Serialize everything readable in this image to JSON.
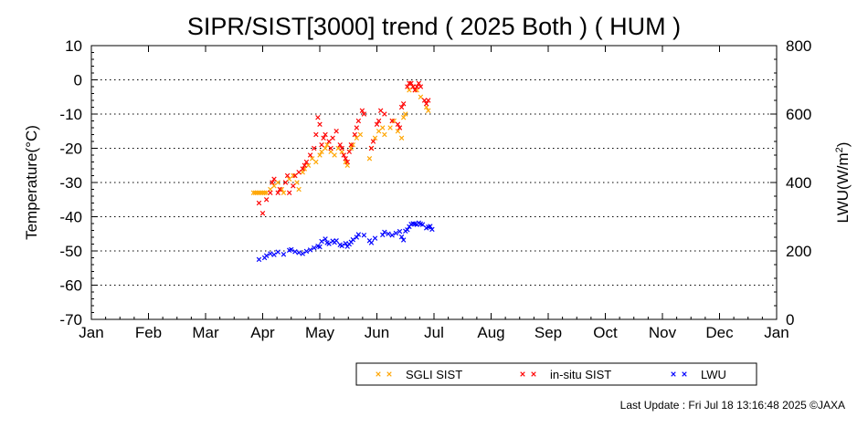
{
  "chart_data": {
    "type": "scatter",
    "title": "SIPR/SIST[3000] trend ( 2025 Both ) ( HUM )",
    "ylabel_left": "Temperature(°C)",
    "ylabel_right_main": "LWU(W/m",
    "ylabel_right_sup": "2",
    "ylabel_right_tail": ")",
    "ylim_left": [
      -70,
      10
    ],
    "yticks_left": [
      "10",
      "0",
      "-10",
      "-20",
      "-30",
      "-40",
      "-50",
      "-60",
      "-70"
    ],
    "ylim_right": [
      0,
      800
    ],
    "yticks_right": [
      "800",
      "600",
      "400",
      "200",
      "0"
    ],
    "xlim_months": [
      0,
      12
    ],
    "xtick_labels": [
      "Jan",
      "Feb",
      "Mar",
      "Apr",
      "May",
      "Jun",
      "Jul",
      "Aug",
      "Sep",
      "Oct",
      "Nov",
      "Dec",
      "Jan"
    ],
    "grid": "horizontal-dotted",
    "legend_position": "bottom-right",
    "series": [
      {
        "name": "SGLI SIST",
        "axis": "left",
        "color": "#ffa500",
        "points": [
          [
            "03-27",
            -33
          ],
          [
            "03-28",
            -33
          ],
          [
            "03-29",
            -33
          ],
          [
            "03-30",
            -33
          ],
          [
            "03-31",
            -33
          ],
          [
            "04-01",
            -33
          ],
          [
            "04-02",
            -33
          ],
          [
            "04-03",
            -33
          ],
          [
            "04-05",
            -32
          ],
          [
            "04-07",
            -31
          ],
          [
            "04-09",
            -30
          ],
          [
            "04-11",
            -32
          ],
          [
            "04-12",
            -33
          ],
          [
            "04-15",
            -29
          ],
          [
            "04-17",
            -28
          ],
          [
            "04-19",
            -30
          ],
          [
            "04-20",
            -32
          ],
          [
            "04-22",
            -27
          ],
          [
            "04-23",
            -26
          ],
          [
            "04-25",
            -25
          ],
          [
            "04-27",
            -23
          ],
          [
            "04-29",
            -24
          ],
          [
            "05-01",
            -22
          ],
          [
            "05-02",
            -21
          ],
          [
            "05-04",
            -20
          ],
          [
            "05-05",
            -19
          ],
          [
            "05-07",
            -21
          ],
          [
            "05-09",
            -22
          ],
          [
            "05-11",
            -20
          ],
          [
            "05-13",
            -21
          ],
          [
            "05-15",
            -24
          ],
          [
            "05-16",
            -25
          ],
          [
            "05-18",
            -20
          ],
          [
            "05-19",
            -19
          ],
          [
            "05-21",
            -17
          ],
          [
            "05-23",
            -16
          ],
          [
            "05-28",
            -23
          ],
          [
            "05-29",
            -20
          ],
          [
            "05-31",
            -17
          ],
          [
            "06-02",
            -15
          ],
          [
            "06-04",
            -14
          ],
          [
            "06-05",
            -16
          ],
          [
            "06-08",
            -14
          ],
          [
            "06-10",
            -12
          ],
          [
            "06-12",
            -15
          ],
          [
            "06-14",
            -17
          ],
          [
            "06-15",
            -11
          ],
          [
            "06-16",
            -10
          ],
          [
            "06-18",
            -3
          ],
          [
            "06-20",
            -2
          ],
          [
            "06-22",
            -3
          ],
          [
            "06-24",
            -5
          ],
          [
            "06-27",
            -8
          ],
          [
            "06-28",
            -9
          ]
        ]
      },
      {
        "name": "in-situ SIST",
        "axis": "left",
        "color": "#ff0000",
        "points": [
          [
            "03-30",
            -36
          ],
          [
            "04-01",
            -39
          ],
          [
            "04-03",
            -35
          ],
          [
            "04-05",
            -33
          ],
          [
            "04-06",
            -30
          ],
          [
            "04-07",
            -29
          ],
          [
            "04-09",
            -33
          ],
          [
            "04-10",
            -32
          ],
          [
            "04-13",
            -30
          ],
          [
            "04-14",
            -28
          ],
          [
            "04-15",
            -33
          ],
          [
            "04-17",
            -31
          ],
          [
            "04-18",
            -28
          ],
          [
            "04-20",
            -27
          ],
          [
            "04-22",
            -26
          ],
          [
            "04-23",
            -25
          ],
          [
            "04-24",
            -24
          ],
          [
            "04-26",
            -22
          ],
          [
            "04-28",
            -20
          ],
          [
            "04-29",
            -16
          ],
          [
            "04-30",
            -11
          ],
          [
            "05-01",
            -13
          ],
          [
            "05-02",
            -19
          ],
          [
            "05-03",
            -17
          ],
          [
            "05-04",
            -16
          ],
          [
            "05-06",
            -18
          ],
          [
            "05-07",
            -20
          ],
          [
            "05-08",
            -17
          ],
          [
            "05-10",
            -15
          ],
          [
            "05-12",
            -19
          ],
          [
            "05-13",
            -20
          ],
          [
            "05-14",
            -22
          ],
          [
            "05-15",
            -23
          ],
          [
            "05-16",
            -24
          ],
          [
            "05-17",
            -21
          ],
          [
            "05-18",
            -19
          ],
          [
            "05-20",
            -16
          ],
          [
            "05-21",
            -14
          ],
          [
            "05-22",
            -12
          ],
          [
            "05-24",
            -9
          ],
          [
            "05-25",
            -10
          ],
          [
            "05-29",
            -20
          ],
          [
            "05-30",
            -18
          ],
          [
            "06-01",
            -13
          ],
          [
            "06-02",
            -12
          ],
          [
            "06-03",
            -9
          ],
          [
            "06-05",
            -10
          ],
          [
            "06-09",
            -12
          ],
          [
            "06-12",
            -13
          ],
          [
            "06-13",
            -14
          ],
          [
            "06-14",
            -8
          ],
          [
            "06-15",
            -7
          ],
          [
            "06-17",
            -2
          ],
          [
            "06-18",
            -1
          ],
          [
            "06-19",
            -1
          ],
          [
            "06-20",
            -2
          ],
          [
            "06-21",
            -3
          ],
          [
            "06-22",
            -2
          ],
          [
            "06-23",
            -1
          ],
          [
            "06-24",
            -2
          ],
          [
            "06-26",
            -6
          ],
          [
            "06-27",
            -7
          ],
          [
            "06-28",
            -6
          ]
        ]
      },
      {
        "name": "LWU",
        "axis": "right",
        "color": "#0000ff",
        "points": [
          [
            "03-30",
            175
          ],
          [
            "04-02",
            180
          ],
          [
            "04-03",
            186
          ],
          [
            "04-05",
            192
          ],
          [
            "04-07",
            189
          ],
          [
            "04-09",
            197
          ],
          [
            "04-12",
            190
          ],
          [
            "04-15",
            202
          ],
          [
            "04-16",
            204
          ],
          [
            "04-18",
            198
          ],
          [
            "04-20",
            195
          ],
          [
            "04-22",
            192
          ],
          [
            "04-24",
            199
          ],
          [
            "04-26",
            203
          ],
          [
            "04-28",
            209
          ],
          [
            "04-30",
            214
          ],
          [
            "05-01",
            212
          ],
          [
            "05-02",
            228
          ],
          [
            "05-04",
            235
          ],
          [
            "05-05",
            224
          ],
          [
            "05-06",
            221
          ],
          [
            "05-08",
            229
          ],
          [
            "05-09",
            225
          ],
          [
            "05-10",
            230
          ],
          [
            "05-12",
            218
          ],
          [
            "05-13",
            215
          ],
          [
            "05-15",
            222
          ],
          [
            "05-16",
            213
          ],
          [
            "05-17",
            220
          ],
          [
            "05-18",
            226
          ],
          [
            "05-19",
            233
          ],
          [
            "05-21",
            240
          ],
          [
            "05-22",
            248
          ],
          [
            "05-25",
            246
          ],
          [
            "05-28",
            230
          ],
          [
            "05-29",
            224
          ],
          [
            "05-31",
            237
          ],
          [
            "06-04",
            247
          ],
          [
            "06-05",
            255
          ],
          [
            "06-07",
            250
          ],
          [
            "06-09",
            246
          ],
          [
            "06-11",
            252
          ],
          [
            "06-13",
            257
          ],
          [
            "06-14",
            241
          ],
          [
            "06-15",
            232
          ],
          [
            "06-16",
            258
          ],
          [
            "06-17",
            262
          ],
          [
            "06-18",
            271
          ],
          [
            "06-19",
            278
          ],
          [
            "06-20",
            280
          ],
          [
            "06-21",
            279
          ],
          [
            "06-22",
            277
          ],
          [
            "06-23",
            282
          ],
          [
            "06-24",
            279
          ],
          [
            "06-25",
            277
          ],
          [
            "06-27",
            267
          ],
          [
            "06-28",
            270
          ],
          [
            "06-29",
            272
          ],
          [
            "06-30",
            263
          ]
        ]
      }
    ],
    "legend": [
      "SGLI SIST",
      "in-situ SIST",
      "LWU"
    ]
  },
  "footer": "Last Update : Fri Jul 18 13:16:48 2025  ©JAXA"
}
